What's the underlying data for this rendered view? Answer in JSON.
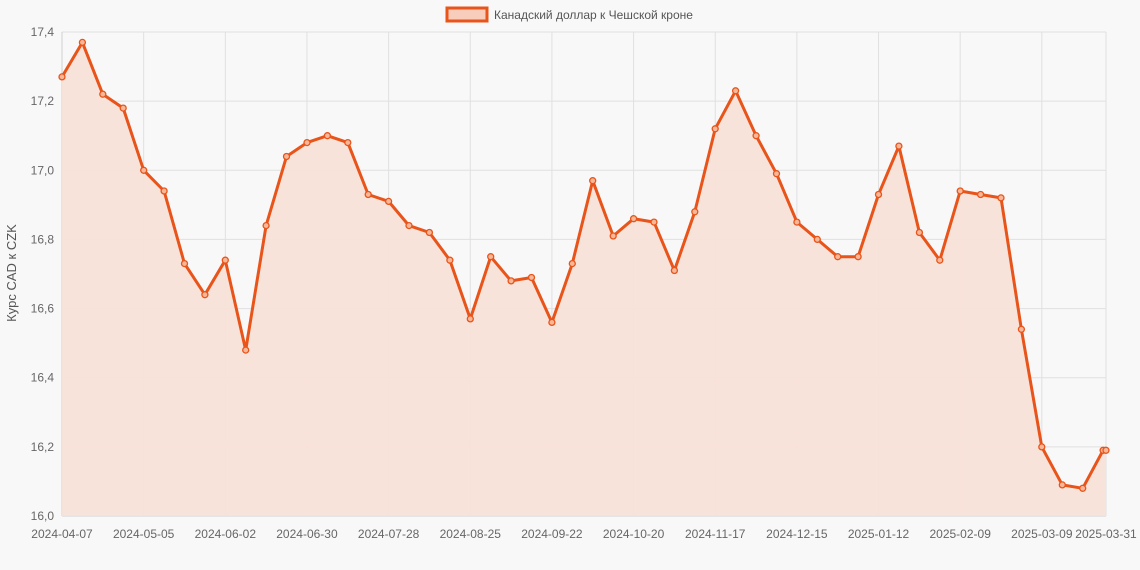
{
  "chart_data": {
    "type": "line",
    "x": [
      "2024-04-07",
      "2024-04-14",
      "2024-04-21",
      "2024-04-28",
      "2024-05-05",
      "2024-05-12",
      "2024-05-19",
      "2024-05-26",
      "2024-06-02",
      "2024-06-09",
      "2024-06-16",
      "2024-06-23",
      "2024-06-30",
      "2024-07-07",
      "2024-07-14",
      "2024-07-21",
      "2024-07-28",
      "2024-08-04",
      "2024-08-11",
      "2024-08-18",
      "2024-08-25",
      "2024-09-01",
      "2024-09-08",
      "2024-09-15",
      "2024-09-22",
      "2024-09-29",
      "2024-10-06",
      "2024-10-13",
      "2024-10-20",
      "2024-10-27",
      "2024-11-03",
      "2024-11-10",
      "2024-11-17",
      "2024-11-24",
      "2024-12-01",
      "2024-12-08",
      "2024-12-15",
      "2024-12-22",
      "2024-12-29",
      "2025-01-05",
      "2025-01-12",
      "2025-01-19",
      "2025-01-26",
      "2025-02-02",
      "2025-02-09",
      "2025-02-16",
      "2025-02-23",
      "2025-03-02",
      "2025-03-09",
      "2025-03-16",
      "2025-03-23",
      "2025-03-30",
      "2025-03-31"
    ],
    "series": [
      {
        "name": "Канадский доллар к Чешской кроне",
        "values": [
          17.27,
          17.37,
          17.22,
          17.18,
          17.0,
          16.94,
          16.73,
          16.64,
          16.74,
          16.48,
          16.84,
          17.04,
          17.08,
          17.1,
          17.08,
          16.93,
          16.91,
          16.84,
          16.82,
          16.74,
          16.57,
          16.75,
          16.68,
          16.69,
          16.56,
          16.73,
          16.97,
          16.81,
          16.86,
          16.85,
          16.71,
          16.88,
          17.12,
          17.23,
          17.1,
          16.99,
          16.85,
          16.8,
          16.75,
          16.75,
          16.93,
          17.07,
          16.82,
          16.74,
          16.94,
          16.93,
          16.92,
          16.54,
          16.2,
          16.09,
          16.08,
          16.19,
          16.19
        ]
      }
    ],
    "x_tick_labels": [
      "2024-04-07",
      "2024-05-05",
      "2024-06-02",
      "2024-06-30",
      "2024-07-28",
      "2024-08-25",
      "2024-09-22",
      "2024-10-20",
      "2024-11-17",
      "2024-12-15",
      "2025-01-12",
      "2025-02-09",
      "2025-03-09",
      "2025-03-31"
    ],
    "y_tick_labels": [
      "16,0",
      "16,2",
      "16,4",
      "16,6",
      "16,8",
      "17,0",
      "17,2",
      "17,4"
    ],
    "y_ticks": [
      16.0,
      16.2,
      16.4,
      16.6,
      16.8,
      17.0,
      17.2,
      17.4
    ],
    "ylim": [
      16.0,
      17.4
    ],
    "xlabel": "",
    "ylabel": "Курс CAD к CZK",
    "title": "",
    "legend_position": "top-center",
    "grid": true,
    "colors": {
      "line": "#e8541a",
      "fill": "#f8e2d8",
      "grid": "#e0e0e0",
      "legend_fill": "#f8cdbb"
    }
  }
}
